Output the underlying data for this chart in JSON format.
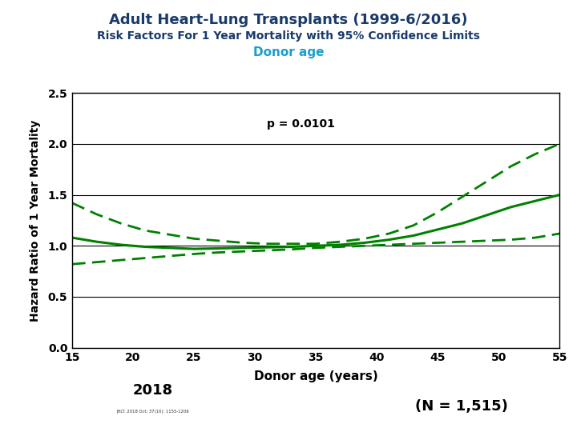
{
  "title1": "Adult Heart-Lung Transplants (1999-6/2016)",
  "title2": "Risk Factors For 1 Year Mortality with 95% Confidence Limits",
  "title3": "Donor age",
  "title1_color": "#1a3a6b",
  "title2_color": "#1a3a6b",
  "title3_color": "#1a9ecc",
  "xlabel": "Donor age (years)",
  "ylabel": "Hazard Ratio of 1 Year Mortality",
  "pvalue_text": "p = 0.0101",
  "n_text": "(N = 1,515)",
  "xlim": [
    15,
    55
  ],
  "ylim": [
    0.0,
    2.5
  ],
  "yticks": [
    0.0,
    0.5,
    1.0,
    1.5,
    2.0,
    2.5
  ],
  "xticks": [
    15,
    20,
    25,
    30,
    35,
    40,
    45,
    50,
    55
  ],
  "line_color": "#008000",
  "x": [
    15,
    17,
    19,
    21,
    23,
    25,
    27,
    29,
    31,
    33,
    35,
    37,
    39,
    41,
    43,
    45,
    47,
    49,
    51,
    53,
    55
  ],
  "y_mid": [
    1.08,
    1.04,
    1.01,
    0.99,
    0.98,
    0.97,
    0.975,
    0.98,
    0.985,
    0.99,
    1.0,
    1.01,
    1.03,
    1.06,
    1.1,
    1.16,
    1.22,
    1.3,
    1.38,
    1.44,
    1.5
  ],
  "y_upper": [
    1.42,
    1.31,
    1.22,
    1.15,
    1.11,
    1.07,
    1.05,
    1.03,
    1.02,
    1.02,
    1.02,
    1.04,
    1.07,
    1.12,
    1.2,
    1.33,
    1.48,
    1.63,
    1.78,
    1.9,
    2.0
  ],
  "y_lower": [
    0.82,
    0.84,
    0.86,
    0.88,
    0.9,
    0.92,
    0.935,
    0.945,
    0.955,
    0.965,
    0.98,
    0.99,
    1.0,
    1.01,
    1.02,
    1.03,
    1.04,
    1.05,
    1.06,
    1.08,
    1.12
  ],
  "bg_color": "#ffffff",
  "grid_color": "#000000"
}
